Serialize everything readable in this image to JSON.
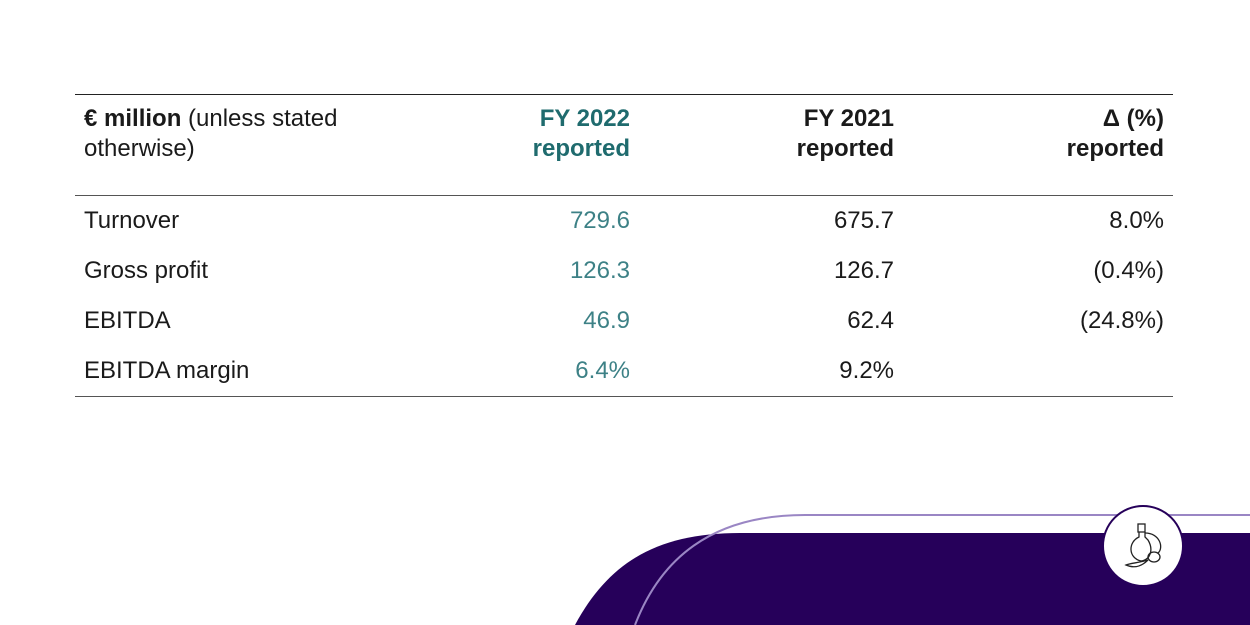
{
  "table": {
    "header": {
      "unit_bold": "€ million",
      "unit_rest": " (unless stated otherwise)",
      "col1": [
        "FY 2022",
        "reported"
      ],
      "col2": [
        "FY 2021",
        "reported"
      ],
      "col3": [
        "Δ (%)",
        "reported"
      ]
    },
    "rows": [
      {
        "label": "Turnover",
        "fy2022": "729.6",
        "fy2021": "675.7",
        "delta": "8.0%"
      },
      {
        "label": "Gross profit",
        "fy2022": "126.3",
        "fy2021": "126.7",
        "delta": "(0.4%)"
      },
      {
        "label": "EBITDA",
        "fy2022": "46.9",
        "fy2021": "62.4",
        "delta": "(24.8%)"
      },
      {
        "label": "EBITDA margin",
        "fy2022": "6.4%",
        "fy2021": "9.2%",
        "delta": ""
      }
    ]
  },
  "colors": {
    "accent": "#1f6b6e",
    "brand_purple": "#26005a",
    "line": "#9a86c4"
  },
  "decor": {
    "icon": "perfume-bottle-icon"
  }
}
